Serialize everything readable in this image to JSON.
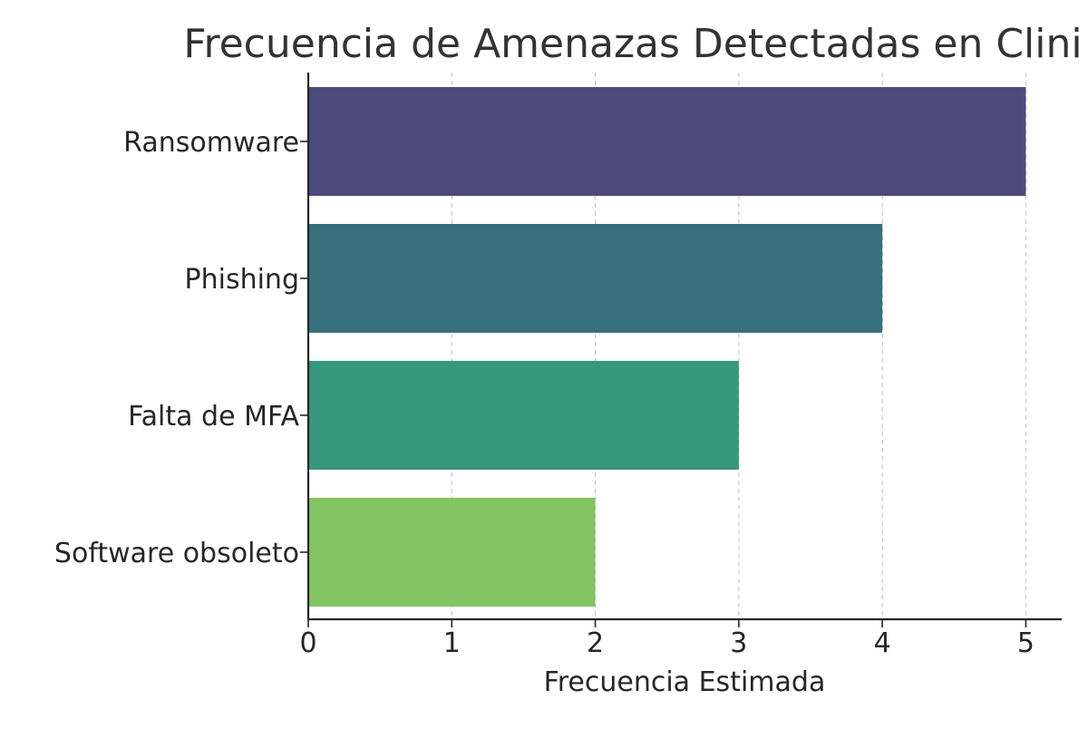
{
  "chart_data": {
    "type": "bar",
    "orientation": "horizontal",
    "title": "Frecuencia de Amenazas Detectadas en Clini",
    "xlabel": "Frecuencia Estimada",
    "ylabel": "",
    "categories": [
      "Ransomware",
      "Phishing",
      "Falta de MFA",
      "Software obsoleto"
    ],
    "values": [
      5,
      4,
      3,
      2
    ],
    "colors": [
      "#4b4b7b",
      "#36707d",
      "#35977b",
      "#82c362"
    ],
    "xlim": [
      0,
      5.25
    ],
    "xticks": [
      0,
      1,
      2,
      3,
      4,
      5
    ],
    "xtick_labels": [
      "0",
      "1",
      "2",
      "3",
      "4",
      "5"
    ],
    "grid": "vertical dashed"
  }
}
